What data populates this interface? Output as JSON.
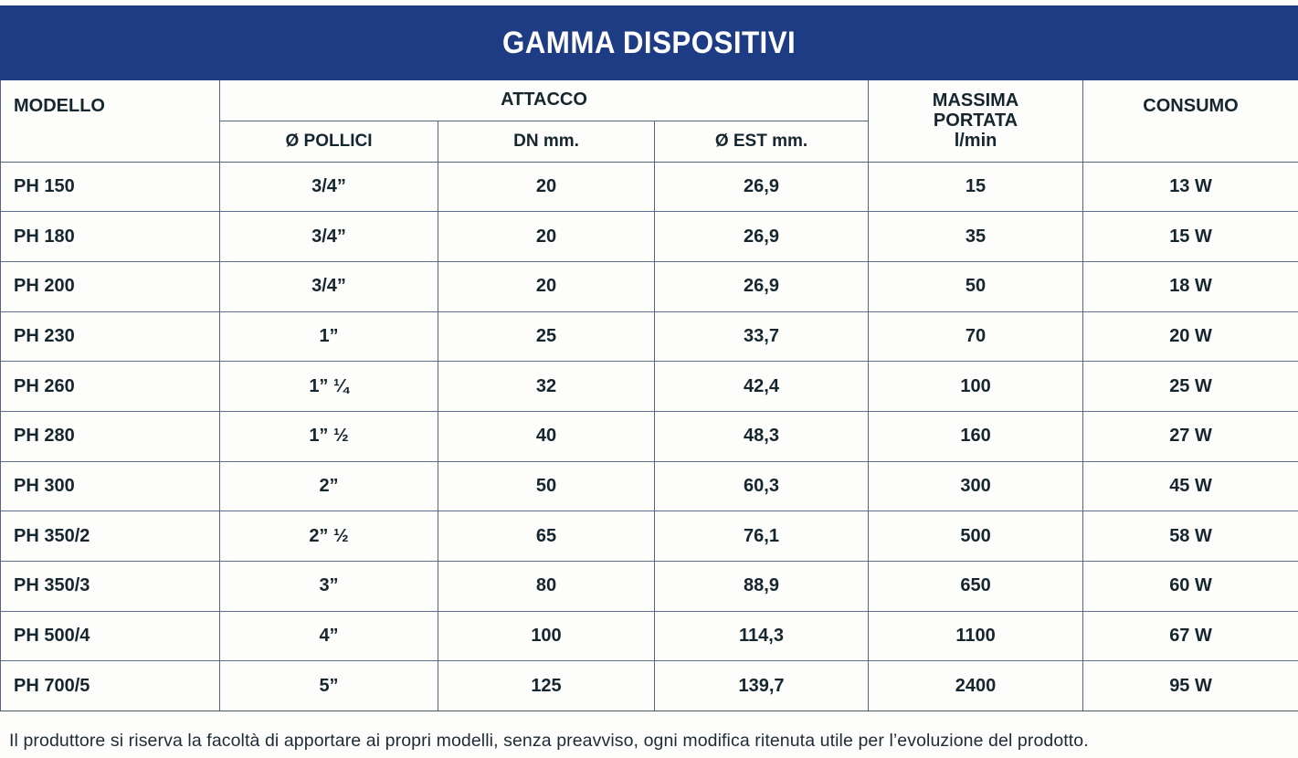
{
  "title": "GAMMA DISPOSITIVI",
  "table": {
    "headers": {
      "modello": "MODELLO",
      "attacco": "ATTACCO",
      "sub": [
        "Ø POLLICI",
        "DN mm.",
        "Ø EST mm."
      ],
      "massima": [
        "MASSIMA",
        "PORTATA",
        "l/min"
      ],
      "consumo": "CONSUMO"
    },
    "rows": [
      [
        "PH 150",
        "3/4”",
        "20",
        "26,9",
        "15",
        "13 W"
      ],
      [
        "PH 180",
        "3/4”",
        "20",
        "26,9",
        "35",
        "15 W"
      ],
      [
        "PH 200",
        "3/4”",
        "20",
        "26,9",
        "50",
        "18 W"
      ],
      [
        "PH 230",
        "1”",
        "25",
        "33,7",
        "70",
        "20 W"
      ],
      [
        "PH 260",
        "1” ¼",
        "32",
        "42,4",
        "100",
        "25 W"
      ],
      [
        "PH 280",
        "1” ½",
        "40",
        "48,3",
        "160",
        "27 W"
      ],
      [
        "PH 300",
        "2”",
        "50",
        "60,3",
        "300",
        "45 W"
      ],
      [
        "PH 350/2",
        "2” ½",
        "65",
        "76,1",
        "500",
        "58 W"
      ],
      [
        "PH 350/3",
        "3”",
        "80",
        "88,9",
        "650",
        "60 W"
      ],
      [
        "PH 500/4",
        "4”",
        "100",
        "114,3",
        "1100",
        "67 W"
      ],
      [
        "PH 700/5",
        "5”",
        "125",
        "139,7",
        "2400",
        "95 W"
      ]
    ]
  },
  "footer": "Il produttore si riserva la facoltà di apportare ai propri modelli, senza preavviso, ogni modifica ritenuta utile per l’evoluzione del prodotto.",
  "colors": {
    "banner_blue": "#1e3c84",
    "text_dark": "#15262e",
    "grid_line": "#55657d"
  }
}
